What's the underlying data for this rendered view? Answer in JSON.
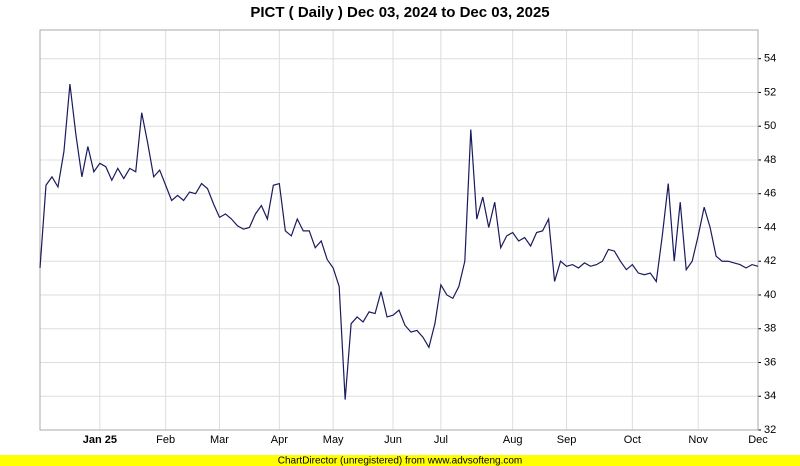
{
  "chart_data": {
    "type": "line",
    "title": "PICT ( Daily ) Dec 03, 2024 to Dec 03, 2025",
    "footer": "ChartDirector (unregistered) from www.advsofteng.com",
    "color": "#1a1a5e",
    "grid": true,
    "ylim": [
      32,
      55.7
    ],
    "yticks": [
      32,
      34,
      36,
      38,
      40,
      42,
      44,
      46,
      48,
      50,
      52,
      54
    ],
    "categories": [
      null,
      null,
      null,
      null,
      null,
      null,
      null,
      null,
      null,
      null,
      "Jan 25",
      null,
      null,
      null,
      null,
      null,
      null,
      null,
      null,
      null,
      null,
      "Feb",
      null,
      null,
      null,
      null,
      null,
      null,
      null,
      null,
      "Mar",
      null,
      null,
      null,
      null,
      null,
      null,
      null,
      null,
      null,
      "Apr",
      null,
      null,
      null,
      null,
      null,
      null,
      null,
      null,
      "May",
      null,
      null,
      null,
      null,
      null,
      null,
      null,
      null,
      null,
      "Jun",
      null,
      null,
      null,
      null,
      null,
      null,
      null,
      "Jul",
      null,
      null,
      null,
      null,
      null,
      null,
      null,
      null,
      null,
      null,
      null,
      "Aug",
      null,
      null,
      null,
      null,
      null,
      null,
      null,
      null,
      "Sep",
      null,
      null,
      null,
      null,
      null,
      null,
      null,
      null,
      null,
      null,
      "Oct",
      null,
      null,
      null,
      null,
      null,
      null,
      null,
      null,
      null,
      null,
      "Nov",
      null,
      null,
      null,
      null,
      null,
      null,
      null,
      null,
      null,
      "Dec"
    ],
    "values": [
      41.6,
      46.5,
      47.0,
      46.4,
      48.5,
      52.5,
      49.5,
      47.0,
      48.8,
      47.3,
      47.8,
      47.6,
      46.8,
      47.5,
      46.9,
      47.5,
      47.3,
      50.8,
      49.0,
      47.0,
      47.4,
      46.5,
      45.6,
      45.9,
      45.6,
      46.1,
      46.0,
      46.6,
      46.3,
      45.4,
      44.6,
      44.8,
      44.5,
      44.1,
      43.9,
      44.0,
      44.8,
      45.3,
      44.5,
      46.5,
      46.6,
      43.8,
      43.5,
      44.5,
      43.8,
      43.8,
      42.8,
      43.2,
      42.1,
      41.6,
      40.5,
      33.8,
      38.3,
      38.7,
      38.4,
      39.0,
      38.9,
      40.2,
      38.7,
      38.8,
      39.1,
      38.2,
      37.8,
      37.9,
      37.5,
      36.9,
      38.3,
      40.6,
      40.0,
      39.8,
      40.5,
      42.0,
      49.8,
      44.5,
      45.8,
      44.0,
      45.5,
      42.8,
      43.5,
      43.7,
      43.2,
      43.4,
      42.9,
      43.7,
      43.8,
      44.5,
      40.8,
      42.0,
      41.7,
      41.8,
      41.6,
      41.9,
      41.7,
      41.8,
      42.0,
      42.7,
      42.6,
      42.0,
      41.5,
      41.8,
      41.3,
      41.2,
      41.3,
      40.8,
      43.5,
      46.6,
      42.0,
      45.5,
      41.5,
      42.0,
      43.5,
      45.2,
      44.0,
      42.3,
      42.0,
      42.0,
      41.9,
      41.8,
      41.6,
      41.8,
      41.7
    ]
  }
}
